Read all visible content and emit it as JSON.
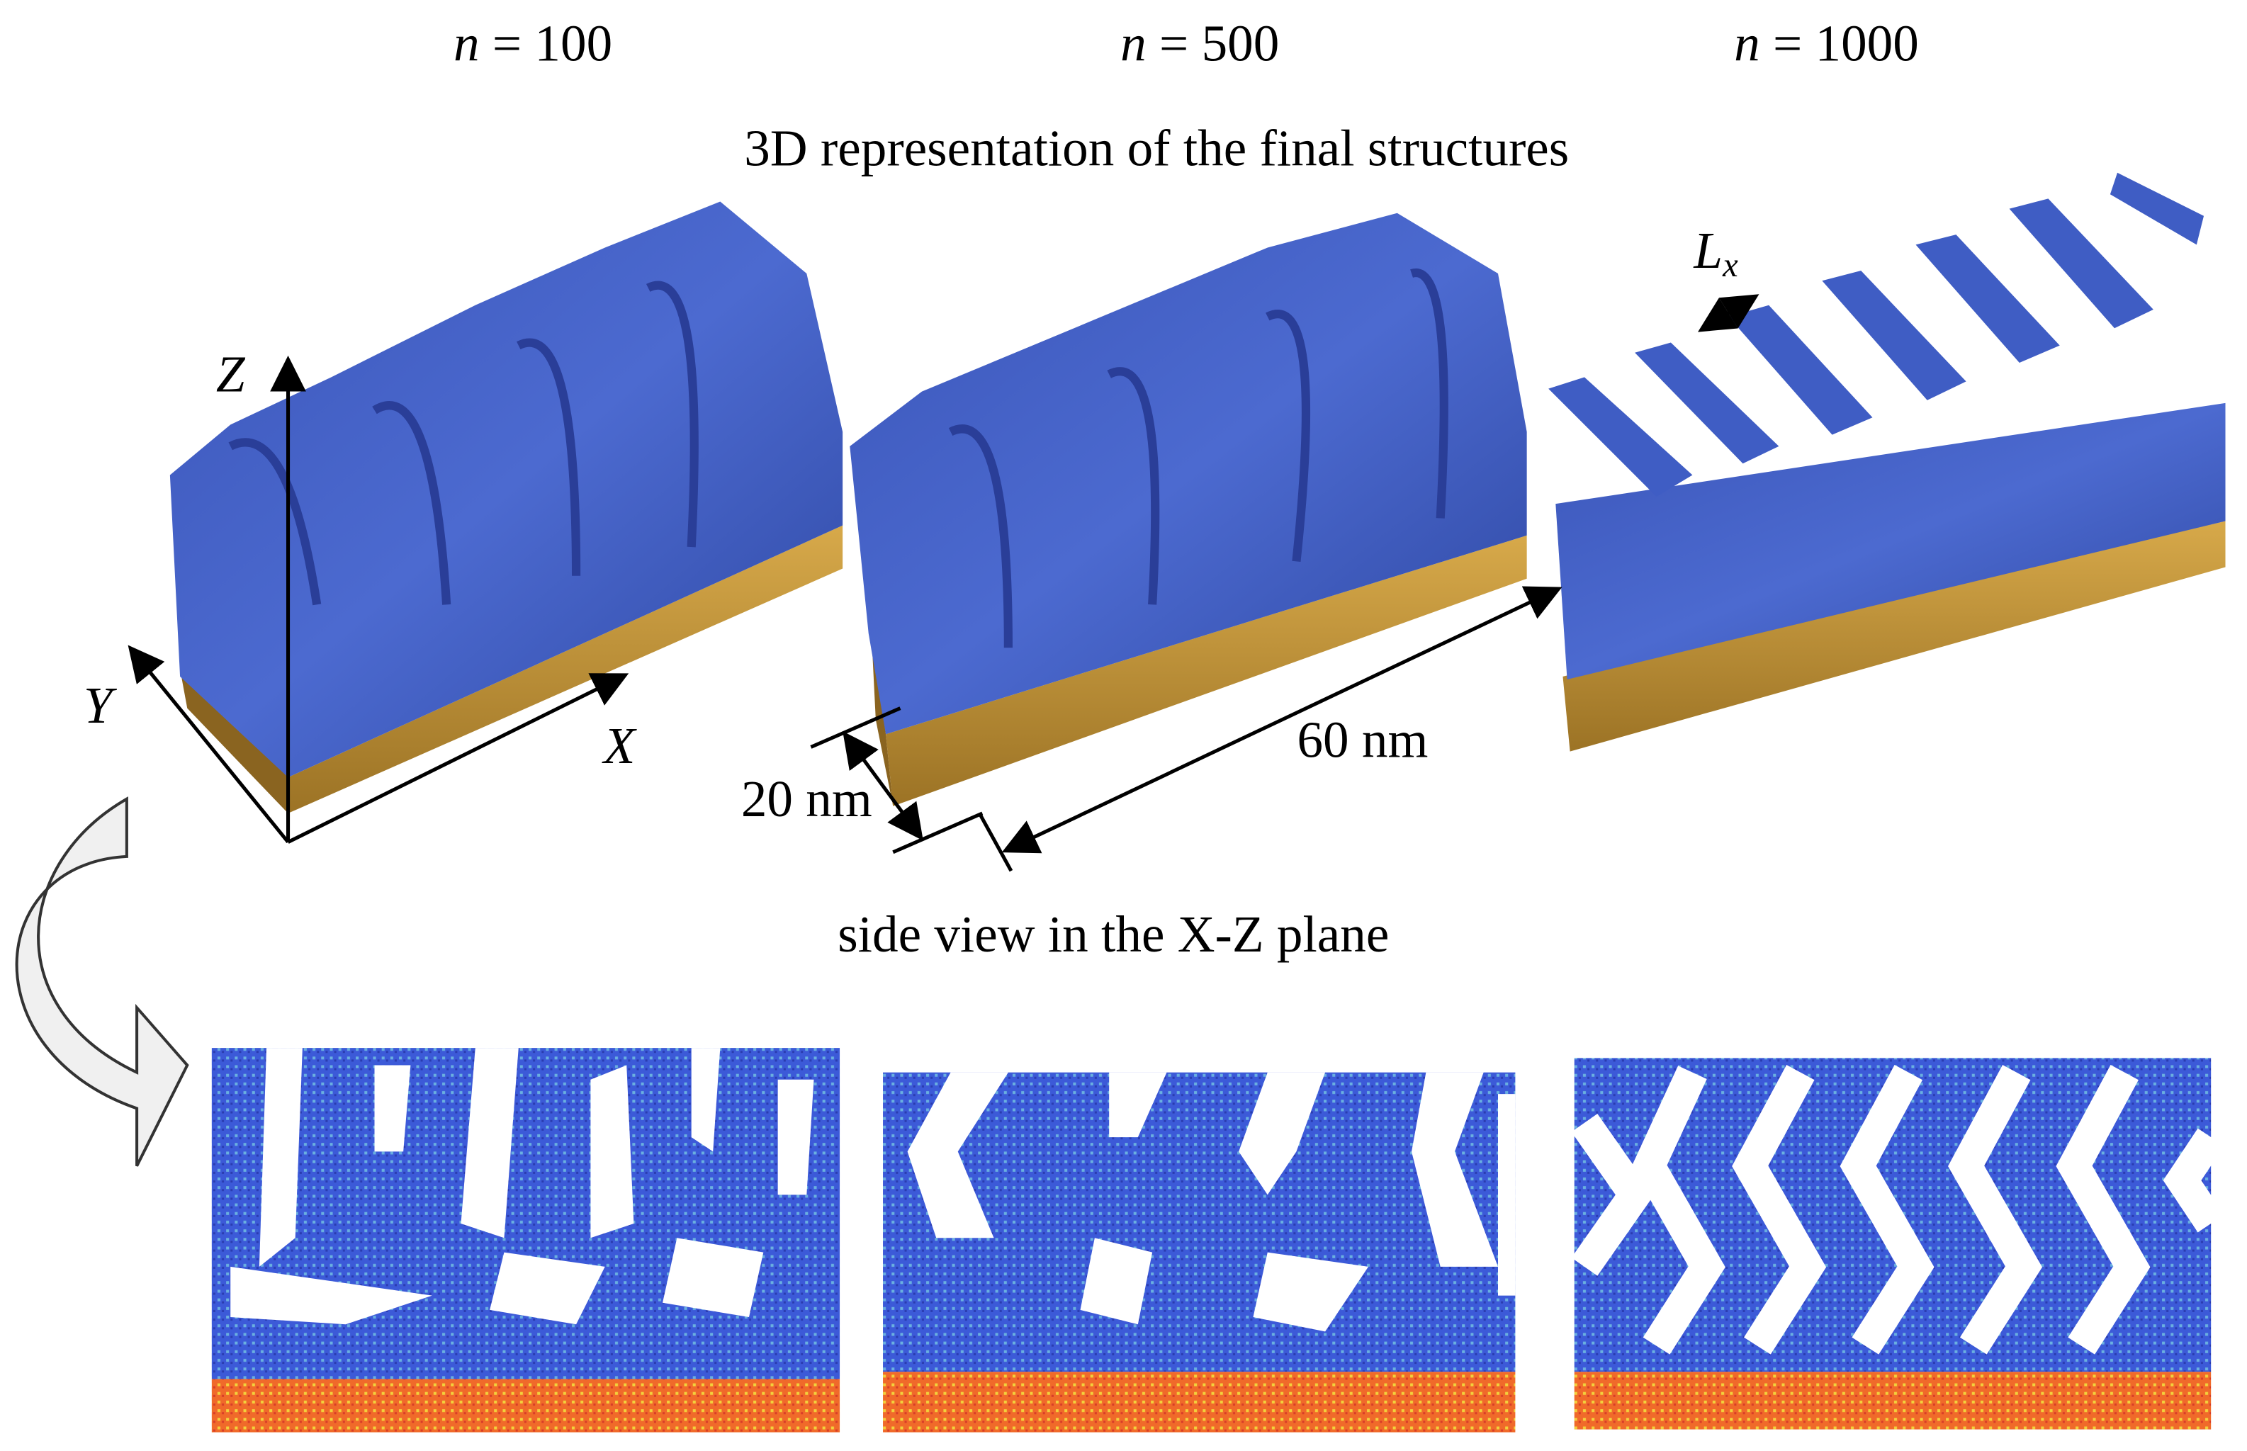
{
  "header": {
    "panels": [
      {
        "symbol": "n",
        "value": "= 100"
      },
      {
        "symbol": "n",
        "value": "= 500"
      },
      {
        "symbol": "n",
        "value": "= 1000"
      }
    ],
    "title": "3D representation of the final structures"
  },
  "axes": {
    "z": "Z",
    "y": "Y",
    "x": "X"
  },
  "annotations": {
    "lx": {
      "base": "L",
      "subscript": "x"
    },
    "width": "20 nm",
    "length": "60 nm"
  },
  "side_view": {
    "title": "side view in the X-Z plane"
  }
}
